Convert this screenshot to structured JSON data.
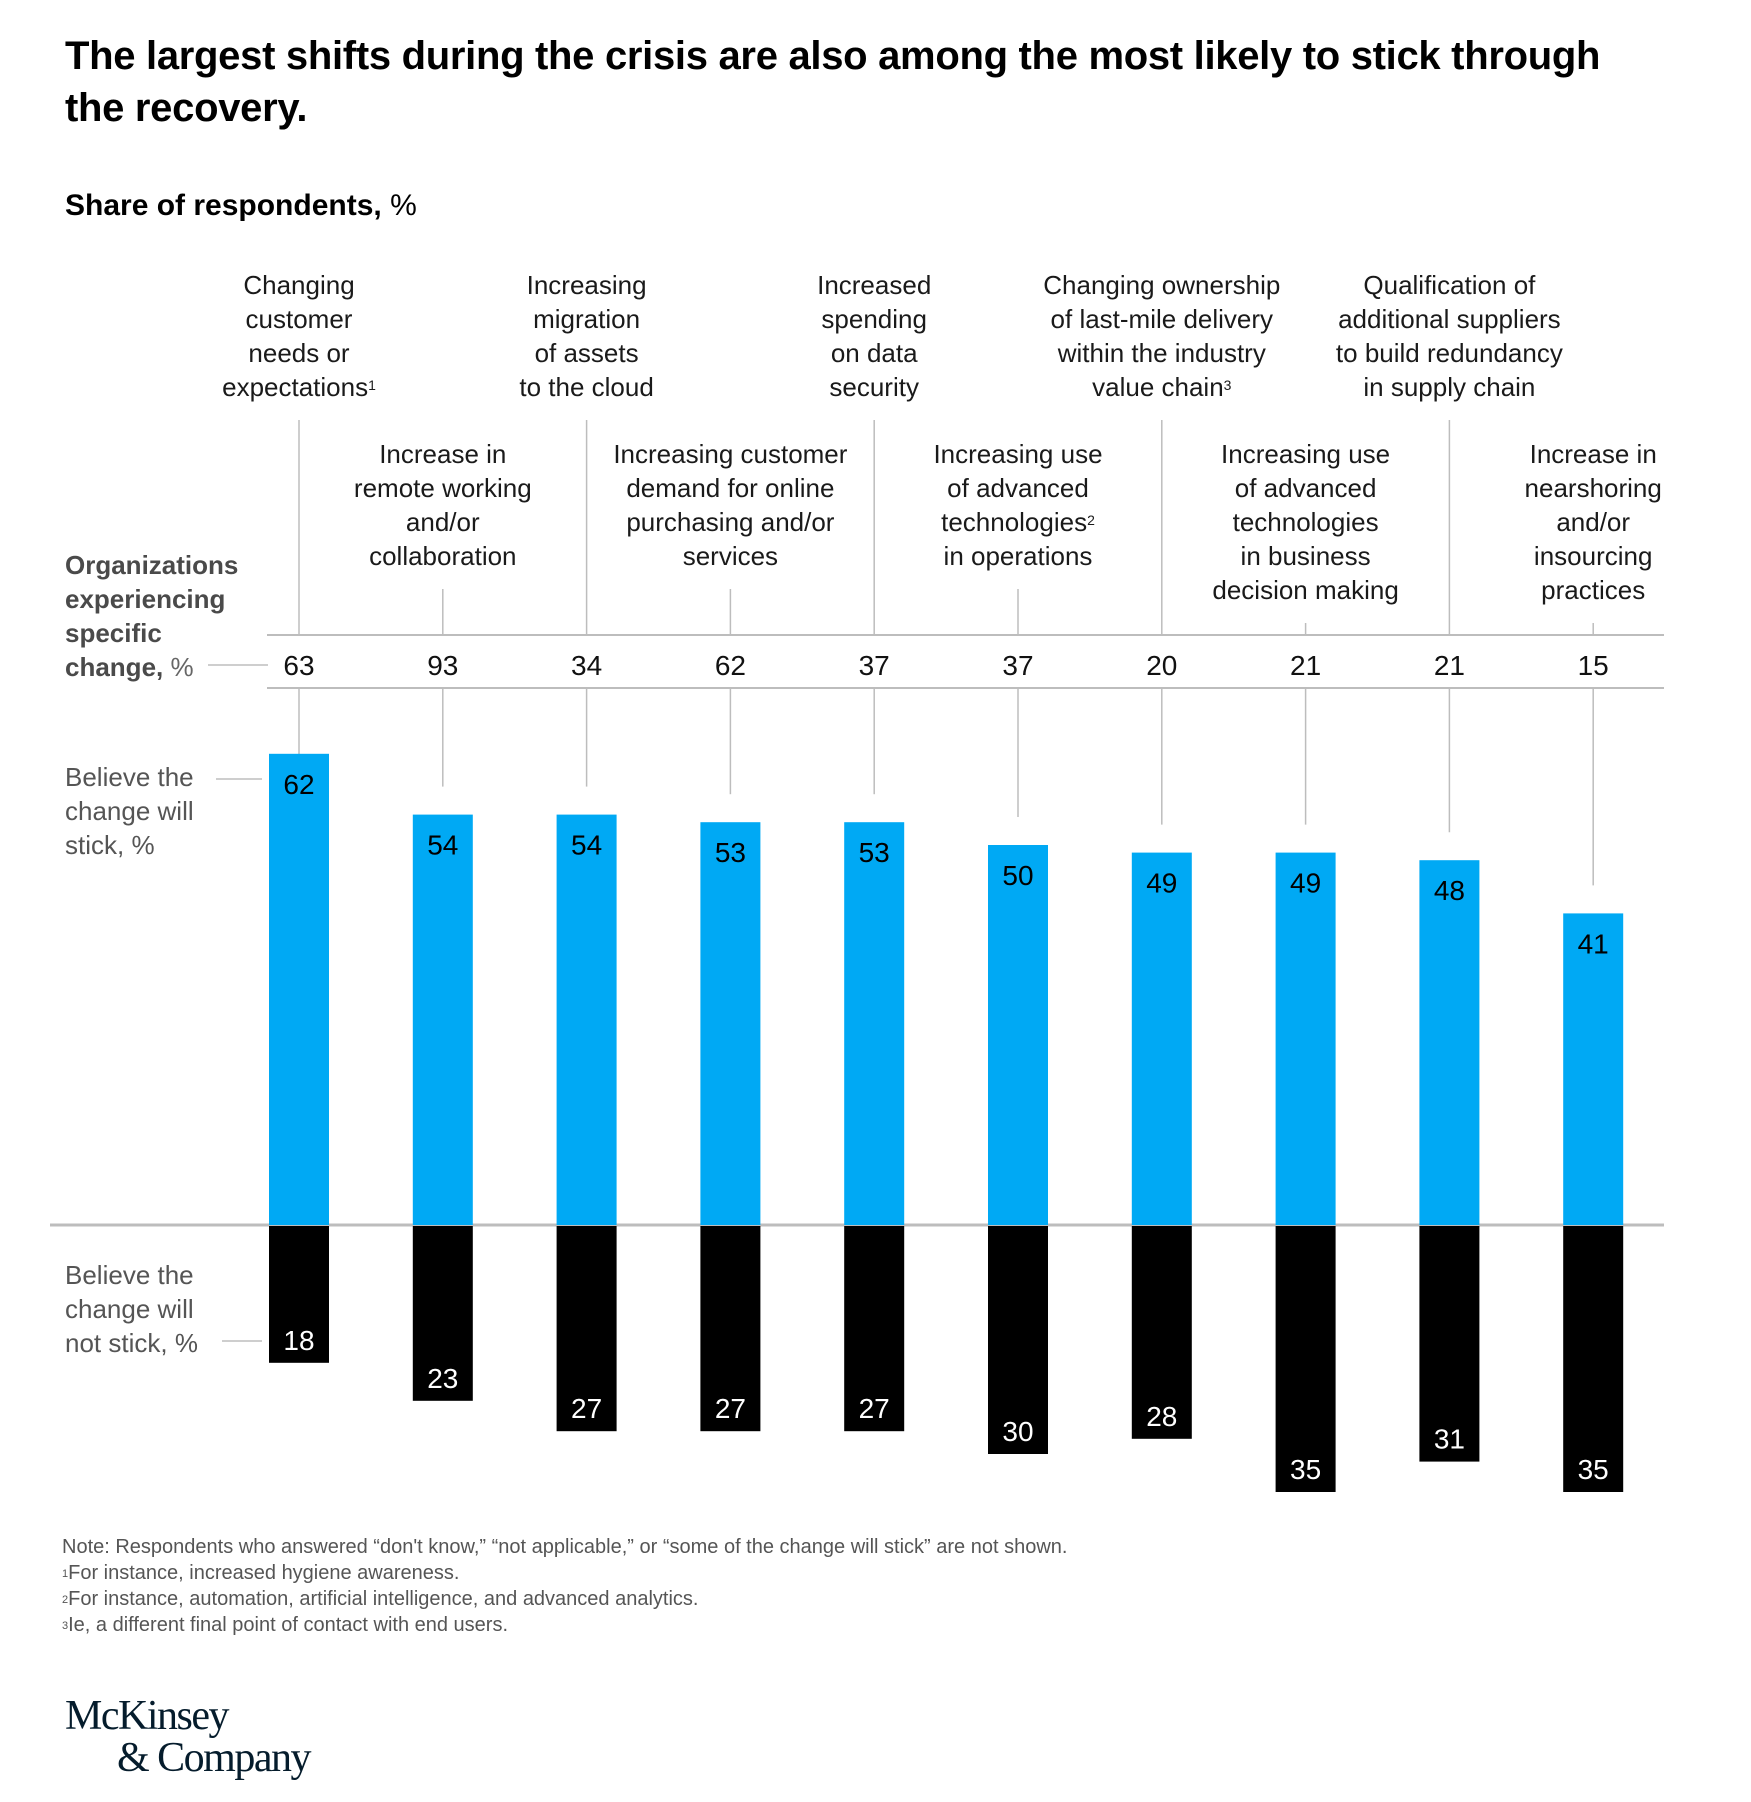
{
  "header": {
    "title": "The largest shifts during the crisis are also among the most likely to stick through the recovery.",
    "subtitle_bold": "Share of respondents,",
    "subtitle_unit": "%"
  },
  "row_labels": {
    "experiencing_bold": "Organizations experiencing specific change,",
    "experiencing_unit": "%",
    "stick": "Believe the change will stick, %",
    "not_stick": "Believe the change will not stick, %"
  },
  "colors": {
    "stick": "#00A9F4",
    "not_stick": "#000000",
    "gridline": "#BDBDBD",
    "logo": "#051C2C"
  },
  "chart_data": {
    "type": "bar",
    "title": "The largest shifts during the crisis are also among the most likely to stick through the recovery.",
    "subtitle": "Share of respondents, %",
    "xlabel": "",
    "ylabel": "Share of respondents, %",
    "categories": [
      {
        "label": "Changing customer needs or expectations",
        "footnote": "1",
        "lines": [
          "Changing",
          "customer",
          "needs or",
          "expectations"
        ],
        "position": "top"
      },
      {
        "label": "Increase in remote working and/or collaboration",
        "footnote": "",
        "lines": [
          "Increase in",
          "remote working",
          "and/or",
          "collaboration"
        ],
        "position": "middle"
      },
      {
        "label": "Increasing migration of assets to the cloud",
        "footnote": "",
        "lines": [
          "Increasing",
          "migration",
          "of assets",
          "to the cloud"
        ],
        "position": "top"
      },
      {
        "label": "Increasing customer demand for online purchasing and/or services",
        "footnote": "",
        "lines": [
          "Increasing customer",
          "demand for online",
          "purchasing and/or",
          "services"
        ],
        "position": "middle"
      },
      {
        "label": "Increased spending on data security",
        "footnote": "",
        "lines": [
          "Increased",
          "spending",
          "on data",
          "security"
        ],
        "position": "top"
      },
      {
        "label": "Increasing use of advanced technologies in operations",
        "footnote": "2",
        "lines": [
          "Increasing use",
          "of advanced",
          "technologies",
          "in operations"
        ],
        "position": "middle"
      },
      {
        "label": "Changing ownership of last-mile delivery within the industry value chain",
        "footnote": "3",
        "lines": [
          "Changing ownership",
          "of last-mile delivery",
          "within the industry",
          "value chain"
        ],
        "position": "top"
      },
      {
        "label": "Increasing use of advanced technologies in business decision making",
        "footnote": "",
        "lines": [
          "Increasing use",
          "of advanced",
          "technologies",
          "in business",
          "decision making"
        ],
        "position": "middle"
      },
      {
        "label": "Qualification of additional suppliers to build redundancy in supply chain",
        "footnote": "",
        "lines": [
          "Qualification of",
          "additional suppliers",
          "to build redundancy",
          "in supply chain"
        ],
        "position": "top"
      },
      {
        "label": "Increase in nearshoring and/or insourcing practices",
        "footnote": "",
        "lines": [
          "Increase in",
          "nearshoring",
          "and/or",
          "insourcing",
          "practices"
        ],
        "position": "middle"
      }
    ],
    "series": [
      {
        "name": "Organizations experiencing specific change, %",
        "values": [
          63,
          93,
          34,
          62,
          37,
          37,
          20,
          21,
          21,
          15
        ]
      },
      {
        "name": "Believe the change will stick, %",
        "values": [
          62,
          54,
          54,
          53,
          53,
          50,
          49,
          49,
          48,
          41
        ],
        "color": "#00A9F4",
        "direction": "up"
      },
      {
        "name": "Believe the change will not stick, %",
        "values": [
          18,
          23,
          27,
          27,
          27,
          30,
          28,
          35,
          31,
          35
        ],
        "color": "#000000",
        "direction": "down"
      }
    ],
    "ylim": [
      -35,
      62
    ],
    "grid": false,
    "legend": "left-row-labels"
  },
  "notes": {
    "note": "Note: Respondents who answered “don't know,” “not applicable,” or “some of the change will stick” are not shown.",
    "footnotes": [
      {
        "mark": "1",
        "text": "For instance, increased hygiene awareness."
      },
      {
        "mark": "2",
        "text": "For instance, automation, artificial intelligence, and advanced analytics."
      },
      {
        "mark": "3",
        "text": "Ie, a different final point of contact with end users."
      }
    ]
  },
  "logo": {
    "line1": "McKinsey",
    "line2": "& Company"
  }
}
